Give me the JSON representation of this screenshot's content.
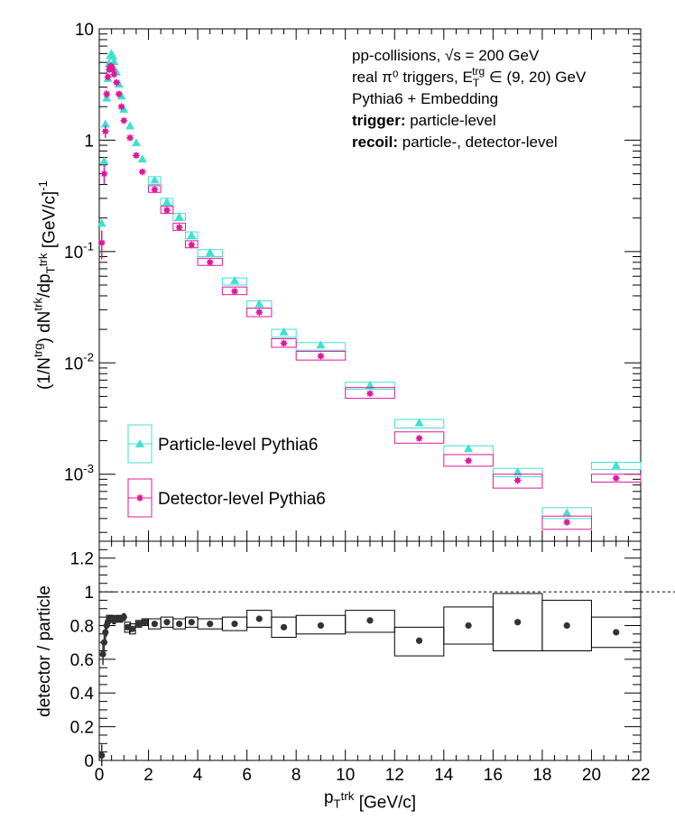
{
  "chart_data": [
    {
      "type": "scatter",
      "panel": "top",
      "yscale": "log",
      "xlim": [
        0,
        22
      ],
      "ylim": [
        0.00025,
        10
      ],
      "ylabel": "(1/N^{trg}) dN^{trk}/dp_{T}^{trk} [GeV/c]^{-1}",
      "ytick_labels": [
        "10",
        "1",
        "10^{-1}",
        "10^{-2}",
        "10^{-3}"
      ],
      "annotations": [
        {
          "text": "pp-collisions, √s = 200 GeV"
        },
        {
          "text": "real π⁰ triggers, E_T^{trg} ∈ (9, 20) GeV"
        },
        {
          "text": "Pythia6 + Embedding"
        },
        {
          "bold": "trigger:",
          "text": " particle-level"
        },
        {
          "bold": "recoil:",
          "text": " particle-, detector-level"
        }
      ],
      "legend": {
        "placement": "bottom-left"
      },
      "series": [
        {
          "name": "Particle-level Pythia6",
          "color": "#40e0d0",
          "marker": "triangle",
          "x": [
            0.1,
            0.2,
            0.25,
            0.3,
            0.35,
            0.4,
            0.45,
            0.5,
            0.55,
            0.6,
            0.7,
            0.8,
            0.9,
            1.0,
            1.25,
            1.5,
            1.75,
            2.25,
            2.75,
            3.25,
            3.75,
            4.5,
            5.5,
            6.5,
            7.5,
            9,
            11,
            13,
            15,
            17,
            19,
            21
          ],
          "y": [
            0.18,
            0.65,
            1.4,
            2.4,
            3.6,
            4.9,
            5.8,
            6.0,
            5.7,
            5.1,
            4.1,
            3.2,
            2.5,
            1.9,
            1.35,
            0.95,
            0.68,
            0.44,
            0.28,
            0.205,
            0.14,
            0.098,
            0.055,
            0.034,
            0.019,
            0.0145,
            0.0063,
            0.0029,
            0.0017,
            0.00105,
            0.00045,
            0.0012
          ],
          "sys_low": [
            null,
            null,
            null,
            null,
            null,
            null,
            null,
            null,
            null,
            null,
            null,
            null,
            null,
            null,
            null,
            null,
            null,
            0.4,
            0.26,
            0.19,
            0.13,
            0.09,
            0.05,
            0.031,
            0.017,
            0.013,
            0.0058,
            0.0026,
            0.0015,
            0.00095,
            0.0004,
            0.0011
          ],
          "sys_high": [
            null,
            null,
            null,
            null,
            null,
            null,
            null,
            null,
            null,
            null,
            null,
            null,
            null,
            null,
            null,
            null,
            null,
            0.47,
            0.3,
            0.22,
            0.15,
            0.104,
            0.058,
            0.036,
            0.02,
            0.0152,
            0.0067,
            0.0031,
            0.0018,
            0.00113,
            0.0005,
            0.00128
          ]
        },
        {
          "name": "Detector-level Pythia6",
          "color": "#e0189a",
          "marker": "star",
          "x": [
            0.1,
            0.2,
            0.25,
            0.3,
            0.35,
            0.4,
            0.45,
            0.5,
            0.55,
            0.6,
            0.7,
            0.8,
            0.9,
            1.0,
            1.25,
            1.5,
            1.75,
            2.25,
            2.75,
            3.25,
            3.75,
            4.5,
            5.5,
            6.5,
            7.5,
            9,
            11,
            13,
            15,
            17,
            19,
            21
          ],
          "y": [
            0.12,
            0.5,
            1.2,
            2.6,
            3.7,
            4.3,
            4.6,
            4.6,
            4.3,
            3.9,
            3.3,
            2.6,
            2.0,
            1.5,
            1.05,
            0.73,
            0.52,
            0.36,
            0.235,
            0.165,
            0.115,
            0.08,
            0.044,
            0.0285,
            0.015,
            0.0115,
            0.0053,
            0.0021,
            0.00132,
            0.00088,
            0.00037,
            0.00092
          ],
          "sys_low": [
            null,
            null,
            null,
            null,
            null,
            null,
            null,
            null,
            null,
            null,
            null,
            null,
            null,
            null,
            null,
            null,
            null,
            0.34,
            0.22,
            0.155,
            0.108,
            0.075,
            0.041,
            0.026,
            0.0138,
            0.0106,
            0.0048,
            0.0019,
            0.00118,
            0.00075,
            0.00032,
            0.00085
          ],
          "sys_high": [
            null,
            null,
            null,
            null,
            null,
            null,
            null,
            null,
            null,
            null,
            null,
            null,
            null,
            null,
            null,
            null,
            null,
            0.39,
            0.255,
            0.18,
            0.125,
            0.087,
            0.048,
            0.031,
            0.0165,
            0.0127,
            0.006,
            0.0024,
            0.0015,
            0.001,
            0.00042,
            0.001
          ],
          "stat_err": [
            0.035,
            0.1,
            0.15,
            0.2,
            0.2,
            0.2,
            0.2,
            0.2,
            0.2,
            0.15,
            0.1,
            0.08,
            0.05,
            0.04,
            0.02,
            0.015,
            0.01,
            0.006,
            0.004,
            0.003,
            0.002,
            0.0015,
            0.0008,
            0.0006,
            0.0003,
            0.0002,
            0.0001,
            5e-05,
            3e-05,
            2e-05,
            1e-05,
            2e-05
          ]
        }
      ]
    },
    {
      "type": "scatter",
      "panel": "bottom",
      "xlim": [
        0,
        22
      ],
      "ylim": [
        0,
        1.3
      ],
      "xlabel": "p_{T}^{trk} [GeV/c]",
      "ylabel": "detector / particle",
      "xtick_labels": [
        "0",
        "2",
        "4",
        "6",
        "8",
        "10",
        "12",
        "14",
        "16",
        "18",
        "20",
        "22"
      ],
      "ytick_labels": [
        "0",
        "0.2",
        "0.4",
        "0.6",
        "0.8",
        "1",
        "1.2"
      ],
      "reference_line": 1,
      "series": [
        {
          "name": "",
          "color": "#333333",
          "marker": "circle",
          "x": [
            0.1,
            0.15,
            0.2,
            0.25,
            0.3,
            0.35,
            0.4,
            0.45,
            0.5,
            0.55,
            0.6,
            0.7,
            0.8,
            0.9,
            1.0,
            1.15,
            1.35,
            1.6,
            1.85,
            2.25,
            2.75,
            3.25,
            3.75,
            4.5,
            5.5,
            6.5,
            7.5,
            9,
            11,
            13,
            15,
            17,
            19,
            21
          ],
          "y": [
            0.03,
            0.63,
            0.7,
            0.76,
            0.8,
            0.82,
            0.84,
            0.84,
            0.84,
            0.84,
            0.83,
            0.84,
            0.84,
            0.84,
            0.85,
            0.79,
            0.78,
            0.81,
            0.82,
            0.81,
            0.82,
            0.81,
            0.82,
            0.81,
            0.81,
            0.84,
            0.79,
            0.8,
            0.83,
            0.71,
            0.8,
            0.82,
            0.8,
            0.76
          ],
          "sys_low": [
            null,
            null,
            null,
            null,
            null,
            null,
            0.82,
            0.82,
            0.82,
            0.82,
            0.81,
            0.82,
            0.82,
            0.82,
            0.83,
            0.76,
            0.75,
            0.79,
            0.8,
            0.78,
            0.79,
            0.78,
            0.79,
            0.78,
            0.77,
            0.79,
            0.73,
            0.75,
            0.76,
            0.62,
            0.69,
            0.65,
            0.65,
            0.67
          ],
          "sys_high": [
            null,
            null,
            null,
            null,
            null,
            null,
            0.86,
            0.86,
            0.86,
            0.86,
            0.85,
            0.86,
            0.86,
            0.86,
            0.87,
            0.82,
            0.81,
            0.83,
            0.84,
            0.84,
            0.85,
            0.84,
            0.85,
            0.84,
            0.85,
            0.89,
            0.85,
            0.86,
            0.89,
            0.79,
            0.91,
            0.99,
            0.95,
            0.85
          ]
        }
      ]
    }
  ]
}
